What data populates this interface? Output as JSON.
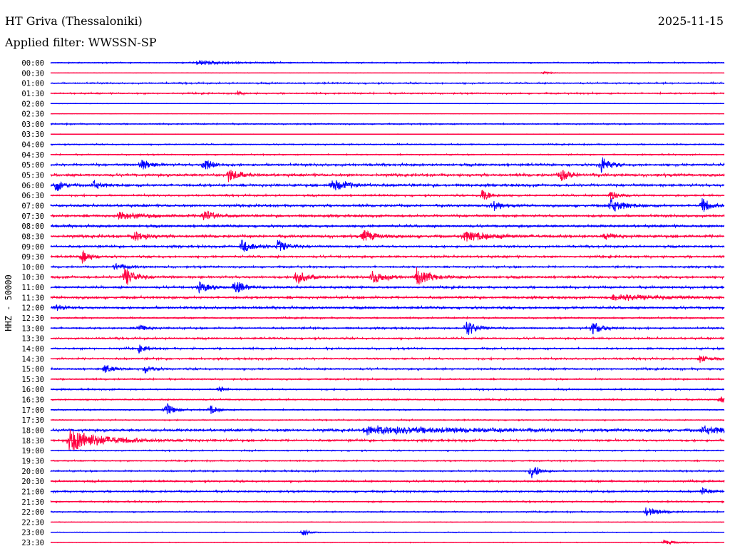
{
  "header": {
    "title": "HT Griva (Thessaloniki)",
    "filter": "Applied filter: WWSSN-SP",
    "date": "2025-11-15"
  },
  "chart_data": {
    "type": "line",
    "subtype": "helicorder",
    "title": "HT Griva (Thessaloniki)",
    "ylabel": "HHZ - 50000",
    "row_minutes": 30,
    "colors": [
      "#0000ff",
      "#ff0040"
    ],
    "row_labels": [
      "00:00",
      "00:30",
      "01:00",
      "01:30",
      "02:00",
      "02:30",
      "03:00",
      "03:30",
      "04:00",
      "04:30",
      "05:00",
      "05:30",
      "06:00",
      "06:30",
      "07:00",
      "07:30",
      "08:00",
      "08:30",
      "09:00",
      "09:30",
      "10:00",
      "10:30",
      "11:00",
      "11:30",
      "12:00",
      "12:30",
      "13:00",
      "13:30",
      "14:00",
      "14:30",
      "15:00",
      "15:30",
      "16:00",
      "16:30",
      "17:00",
      "17:30",
      "18:00",
      "18:30",
      "19:00",
      "19:30",
      "20:00",
      "20:30",
      "21:00",
      "21:30",
      "22:00",
      "22:30",
      "23:00",
      "23:30"
    ],
    "noise": [
      1,
      0.4,
      1.2,
      1.2,
      0.5,
      0.3,
      1,
      0.4,
      1,
      1,
      2,
      2.2,
      2.2,
      1.5,
      2,
      2,
      2,
      2.2,
      1.8,
      1.8,
      1.5,
      2,
      1.8,
      2,
      2,
      1.2,
      1.5,
      1.5,
      1.5,
      1.5,
      1.5,
      1.2,
      1.2,
      1.2,
      1,
      1,
      2.2,
      1.8,
      1,
      1,
      1.2,
      1.5,
      1.5,
      1.2,
      1,
      0.5,
      0.6,
      0.5
    ],
    "events": [
      {
        "row": 0,
        "minute": 6.5,
        "amp": 3,
        "width": 1.2
      },
      {
        "row": 1,
        "minute": 21.9,
        "amp": 2,
        "width": 0.4
      },
      {
        "row": 3,
        "minute": 8.3,
        "amp": 3,
        "width": 0.2
      },
      {
        "row": 10,
        "minute": 4.0,
        "amp": 8,
        "width": 0.4
      },
      {
        "row": 10,
        "minute": 6.8,
        "amp": 12,
        "width": 0.3
      },
      {
        "row": 10,
        "minute": 24.5,
        "amp": 14,
        "width": 0.3
      },
      {
        "row": 11,
        "minute": 7.9,
        "amp": 10,
        "width": 0.4
      },
      {
        "row": 11,
        "minute": 22.7,
        "amp": 8,
        "width": 0.4
      },
      {
        "row": 12,
        "minute": 0.2,
        "amp": 10,
        "width": 0.3
      },
      {
        "row": 12,
        "minute": 1.9,
        "amp": 6,
        "width": 0.3
      },
      {
        "row": 12,
        "minute": 12.5,
        "amp": 9,
        "width": 0.6
      },
      {
        "row": 13,
        "minute": 19.2,
        "amp": 10,
        "width": 0.3
      },
      {
        "row": 13,
        "minute": 24.9,
        "amp": 8,
        "width": 0.3
      },
      {
        "row": 14,
        "minute": 19.7,
        "amp": 8,
        "width": 0.3
      },
      {
        "row": 14,
        "minute": 24.9,
        "amp": 10,
        "width": 0.5
      },
      {
        "row": 14,
        "minute": 29.0,
        "amp": 12,
        "width": 0.3
      },
      {
        "row": 15,
        "minute": 3.0,
        "amp": 5,
        "width": 1.0
      },
      {
        "row": 15,
        "minute": 6.8,
        "amp": 9,
        "width": 0.4
      },
      {
        "row": 17,
        "minute": 3.7,
        "amp": 8,
        "width": 0.4
      },
      {
        "row": 17,
        "minute": 13.9,
        "amp": 9,
        "width": 0.5
      },
      {
        "row": 17,
        "minute": 18.4,
        "amp": 6,
        "width": 1.2
      },
      {
        "row": 17,
        "minute": 24.7,
        "amp": 6,
        "width": 0.3
      },
      {
        "row": 18,
        "minute": 8.5,
        "amp": 9,
        "width": 0.5
      },
      {
        "row": 18,
        "minute": 10.1,
        "amp": 9,
        "width": 0.4
      },
      {
        "row": 19,
        "minute": 1.4,
        "amp": 10,
        "width": 0.3
      },
      {
        "row": 20,
        "minute": 2.8,
        "amp": 5,
        "width": 0.5
      },
      {
        "row": 21,
        "minute": 3.3,
        "amp": 14,
        "width": 0.4
      },
      {
        "row": 21,
        "minute": 10.9,
        "amp": 12,
        "width": 0.4
      },
      {
        "row": 21,
        "minute": 14.3,
        "amp": 10,
        "width": 0.5
      },
      {
        "row": 21,
        "minute": 16.3,
        "amp": 12,
        "width": 0.5
      },
      {
        "row": 22,
        "minute": 6.6,
        "amp": 8,
        "width": 0.4
      },
      {
        "row": 22,
        "minute": 8.2,
        "amp": 10,
        "width": 0.4
      },
      {
        "row": 23,
        "minute": 25.0,
        "amp": 4,
        "width": 2.0
      },
      {
        "row": 24,
        "minute": 0.2,
        "amp": 5,
        "width": 0.3
      },
      {
        "row": 26,
        "minute": 3.9,
        "amp": 6,
        "width": 0.3
      },
      {
        "row": 26,
        "minute": 18.5,
        "amp": 12,
        "width": 0.4
      },
      {
        "row": 26,
        "minute": 24.1,
        "amp": 10,
        "width": 0.4
      },
      {
        "row": 28,
        "minute": 3.9,
        "amp": 6,
        "width": 0.3
      },
      {
        "row": 29,
        "minute": 28.9,
        "amp": 6,
        "width": 0.3
      },
      {
        "row": 30,
        "minute": 2.4,
        "amp": 7,
        "width": 0.3
      },
      {
        "row": 30,
        "minute": 4.2,
        "amp": 6,
        "width": 0.3
      },
      {
        "row": 32,
        "minute": 7.5,
        "amp": 5,
        "width": 0.2
      },
      {
        "row": 33,
        "minute": 29.8,
        "amp": 8,
        "width": 0.2
      },
      {
        "row": 34,
        "minute": 5.1,
        "amp": 12,
        "width": 0.3
      },
      {
        "row": 34,
        "minute": 7.1,
        "amp": 6,
        "width": 0.3
      },
      {
        "row": 36,
        "minute": 14.0,
        "amp": 5,
        "width": 4.0
      },
      {
        "row": 36,
        "minute": 29.0,
        "amp": 5,
        "width": 1.0
      },
      {
        "row": 37,
        "minute": 0.8,
        "amp": 16,
        "width": 1.4
      },
      {
        "row": 40,
        "minute": 21.4,
        "amp": 12,
        "width": 0.3
      },
      {
        "row": 42,
        "minute": 29.0,
        "amp": 5,
        "width": 0.3
      },
      {
        "row": 44,
        "minute": 26.5,
        "amp": 6,
        "width": 0.6
      },
      {
        "row": 46,
        "minute": 11.2,
        "amp": 5,
        "width": 0.3
      },
      {
        "row": 47,
        "minute": 27.3,
        "amp": 3,
        "width": 0.6
      }
    ]
  }
}
